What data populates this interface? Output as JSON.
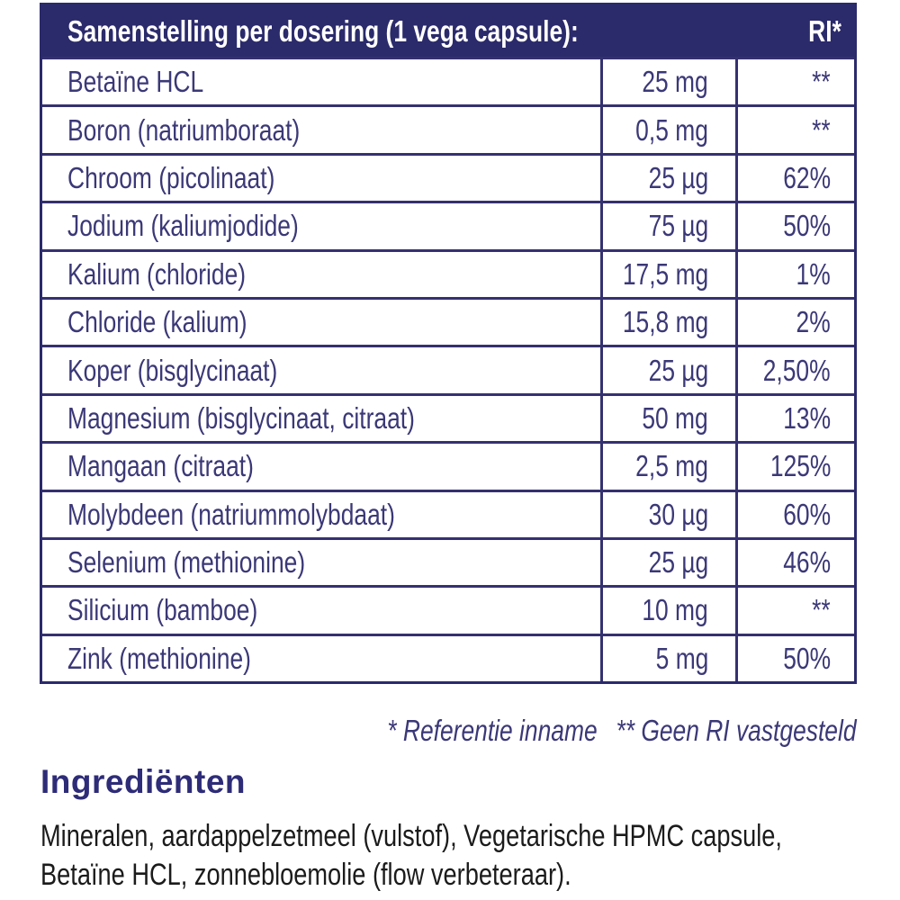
{
  "table": {
    "header": {
      "title": "Samenstelling per dosering (1 vega capsule):",
      "ri_label": "RI*"
    },
    "columns": [
      "ingredient",
      "amount",
      "ri_percent"
    ],
    "rows": [
      {
        "name": "Betaïne HCL",
        "amount": "25 mg",
        "ri": "**"
      },
      {
        "name": "Boron (natriumboraat)",
        "amount": "0,5 mg",
        "ri": "**"
      },
      {
        "name": "Chroom (picolinaat)",
        "amount": "25 µg",
        "ri": "62%"
      },
      {
        "name": "Jodium (kaliumjodide)",
        "amount": "75 µg",
        "ri": "50%"
      },
      {
        "name": "Kalium (chloride)",
        "amount": "17,5 mg",
        "ri": "1%"
      },
      {
        "name": "Chloride (kalium)",
        "amount": "15,8 mg",
        "ri": "2%"
      },
      {
        "name": "Koper (bisglycinaat)",
        "amount": "25 µg",
        "ri": "2,50%"
      },
      {
        "name": "Magnesium (bisglycinaat, citraat)",
        "amount": "50 mg",
        "ri": "13%"
      },
      {
        "name": "Mangaan (citraat)",
        "amount": "2,5 mg",
        "ri": "125%"
      },
      {
        "name": "Molybdeen (natriummolybdaat)",
        "amount": "30 µg",
        "ri": "60%"
      },
      {
        "name": "Selenium (methionine)",
        "amount": "25 µg",
        "ri": "46%"
      },
      {
        "name": "Silicium (bamboe)",
        "amount": "10 mg",
        "ri": "**"
      },
      {
        "name": "Zink (methionine)",
        "amount": "5 mg",
        "ri": "50%"
      }
    ]
  },
  "footnote": {
    "reference": "* Referentie inname",
    "no_ri": "** Geen RI vastgesteld"
  },
  "ingredients": {
    "heading": "Ingrediënten",
    "lines": [
      "Mineralen, aardappelzetmeel (vulstof), Vegetarische HPMC capsule,",
      "Betaïne HCL, zonnebloemolie (flow verbeteraar)."
    ]
  },
  "colors": {
    "header_background": "#2b2a6b",
    "table_border": "#34316f",
    "table_text": "#3b3877",
    "heading_text": "#2e2c78",
    "body_text": "#1b1b1b"
  }
}
